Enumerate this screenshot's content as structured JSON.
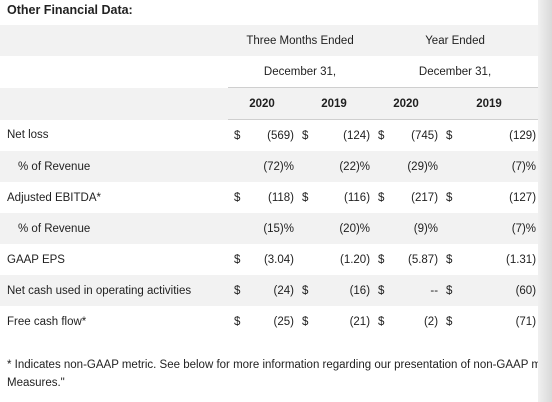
{
  "title": "Other Financial Data:",
  "header": {
    "three_months": "Three Months Ended",
    "year_ended": "Year Ended",
    "date_q": "December 31,",
    "date_y": "December 31,",
    "years": [
      "2020",
      "2019",
      "2020",
      "2019"
    ]
  },
  "rows": [
    {
      "label": "Net loss",
      "c1": "$",
      "v1": "(569)",
      "c2": "$",
      "v2": "(124)",
      "c3": "$",
      "v3": "(745)",
      "c4": "$",
      "v4": "(129)"
    },
    {
      "label": "% of Revenue",
      "c1": "",
      "v1": "(72)%",
      "c2": "",
      "v2": "(22)%",
      "c3": "",
      "v3": "(29)%",
      "c4": "",
      "v4": "(7)%"
    },
    {
      "label": "Adjusted EBITDA*",
      "c1": "$",
      "v1": "(118)",
      "c2": "$",
      "v2": "(116)",
      "c3": "$",
      "v3": "(217)",
      "c4": "$",
      "v4": "(127)"
    },
    {
      "label": "% of Revenue",
      "c1": "",
      "v1": "(15)%",
      "c2": "",
      "v2": "(20)%",
      "c3": "",
      "v3": "(9)%",
      "c4": "",
      "v4": "(7)%"
    },
    {
      "label": "GAAP EPS",
      "c1": "$",
      "v1": "(3.04)",
      "c2": "",
      "v2": "(1.20)",
      "c3": "$",
      "v3": "(5.87)",
      "c4": "$",
      "v4": "(1.31)"
    },
    {
      "label": "Net cash used in operating activities",
      "c1": "$",
      "v1": "(24)",
      "c2": "$",
      "v2": "(16)",
      "c3": "$",
      "v3": "--",
      "c4": "$",
      "v4": "(60)"
    },
    {
      "label": "Free cash flow*",
      "c1": "$",
      "v1": "(25)",
      "c2": "$",
      "v2": "(21)",
      "c3": "$",
      "v3": "(2)",
      "c4": "$",
      "v4": "(71)"
    }
  ],
  "footnote_line1": "* Indicates non-GAAP metric. See below for more information regarding our presentation of non-GAAP met",
  "footnote_line2": "Measures.\""
}
